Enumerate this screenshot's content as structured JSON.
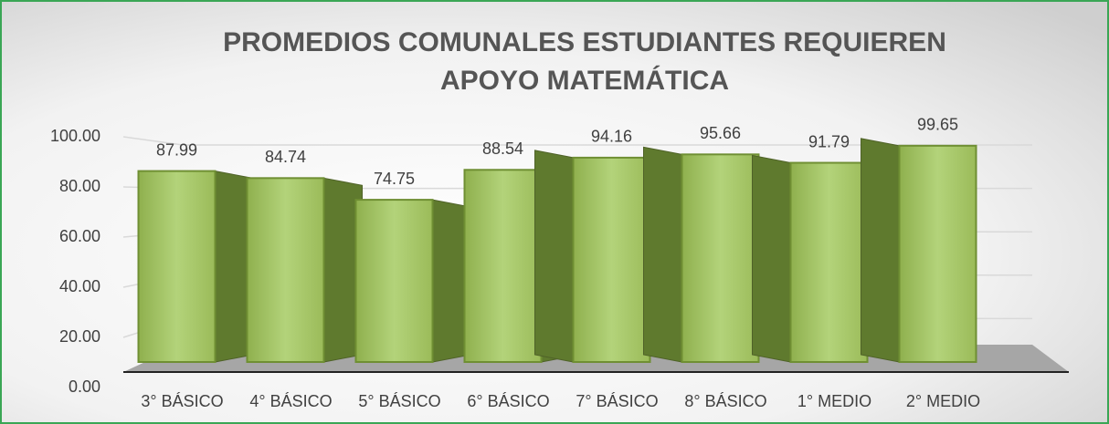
{
  "chart_data": {
    "type": "bar3d",
    "title": "PROMEDIOS COMUNALES ESTUDIANTES REQUIEREN APOYO MATEMÁTICA",
    "categories": [
      "3° BÁSICO",
      "4° BÁSICO",
      "5° BÁSICO",
      "6° BÁSICO",
      "7° BÁSICO",
      "8° BÁSICO",
      "1° MEDIO",
      "2° MEDIO"
    ],
    "values": [
      87.99,
      84.74,
      74.75,
      88.54,
      94.16,
      95.66,
      91.79,
      99.65
    ],
    "color": "#9bbb59",
    "ylim": [
      0,
      100
    ],
    "yticks": [
      {
        "value": 0,
        "label": "0.00"
      },
      {
        "value": 20,
        "label": "20.00"
      },
      {
        "value": 40,
        "label": "40.00"
      },
      {
        "value": 60,
        "label": "60.00"
      },
      {
        "value": 80,
        "label": "80.00"
      },
      {
        "value": 100,
        "label": "100.00"
      }
    ],
    "grid": true
  }
}
